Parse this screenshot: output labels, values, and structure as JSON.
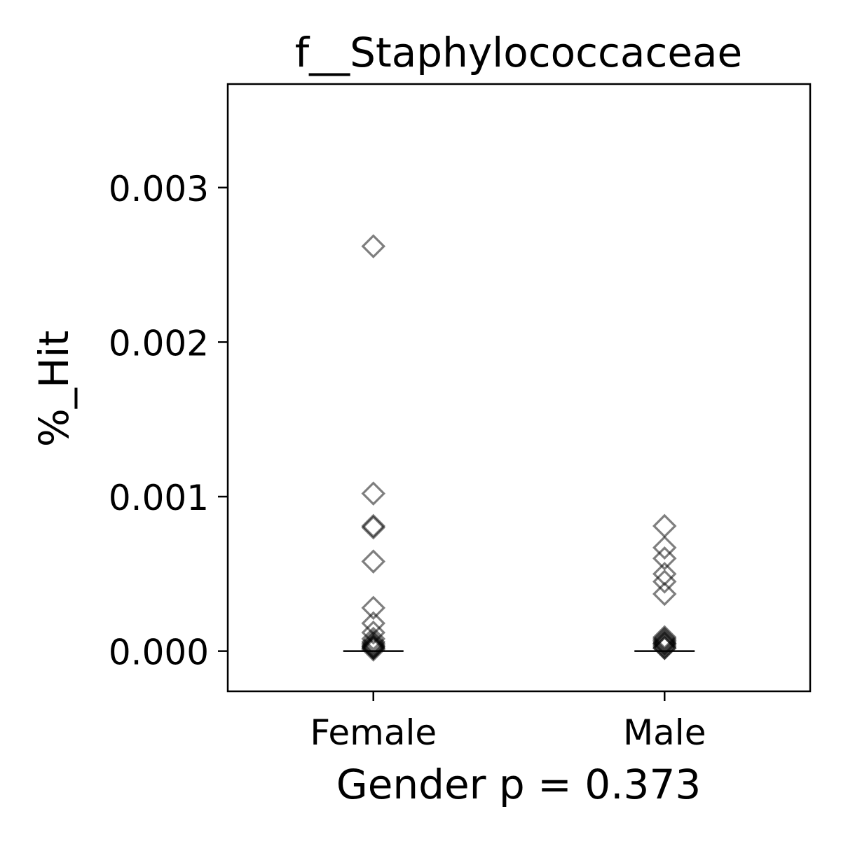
{
  "chart_data": {
    "type": "scatter",
    "title": "f__Staphylococcaceae",
    "xlabel": "Gender p = 0.373",
    "ylabel": "%_Hit",
    "categories": [
      "Female",
      "Male"
    ],
    "ylim": [
      -0.00026,
      0.00367
    ],
    "yticks": [
      0.0,
      0.001,
      0.002,
      0.003
    ],
    "ytick_labels": [
      "0.000",
      "0.001",
      "0.002",
      "0.003"
    ],
    "grid": false,
    "marker": "diamond-open",
    "marker_color": "#000000",
    "marker_alpha": 0.5,
    "series": [
      {
        "category": "Female",
        "values": [
          0.00262,
          0.00102,
          0.00081,
          0.0008,
          0.00058,
          0.00028,
          0.00018,
          0.00012,
          8e-05,
          6e-05,
          5e-05,
          4e-05,
          3e-05,
          3e-05,
          2e-05,
          2e-05,
          1e-05
        ],
        "median": 0.0
      },
      {
        "category": "Male",
        "values": [
          0.00081,
          0.00067,
          0.0006,
          0.0005,
          0.00045,
          0.00037,
          9e-05,
          8e-05,
          7e-05,
          6e-05,
          5e-05,
          5e-05,
          4e-05,
          3e-05,
          2e-05,
          2e-05
        ],
        "median": 0.0
      }
    ]
  }
}
